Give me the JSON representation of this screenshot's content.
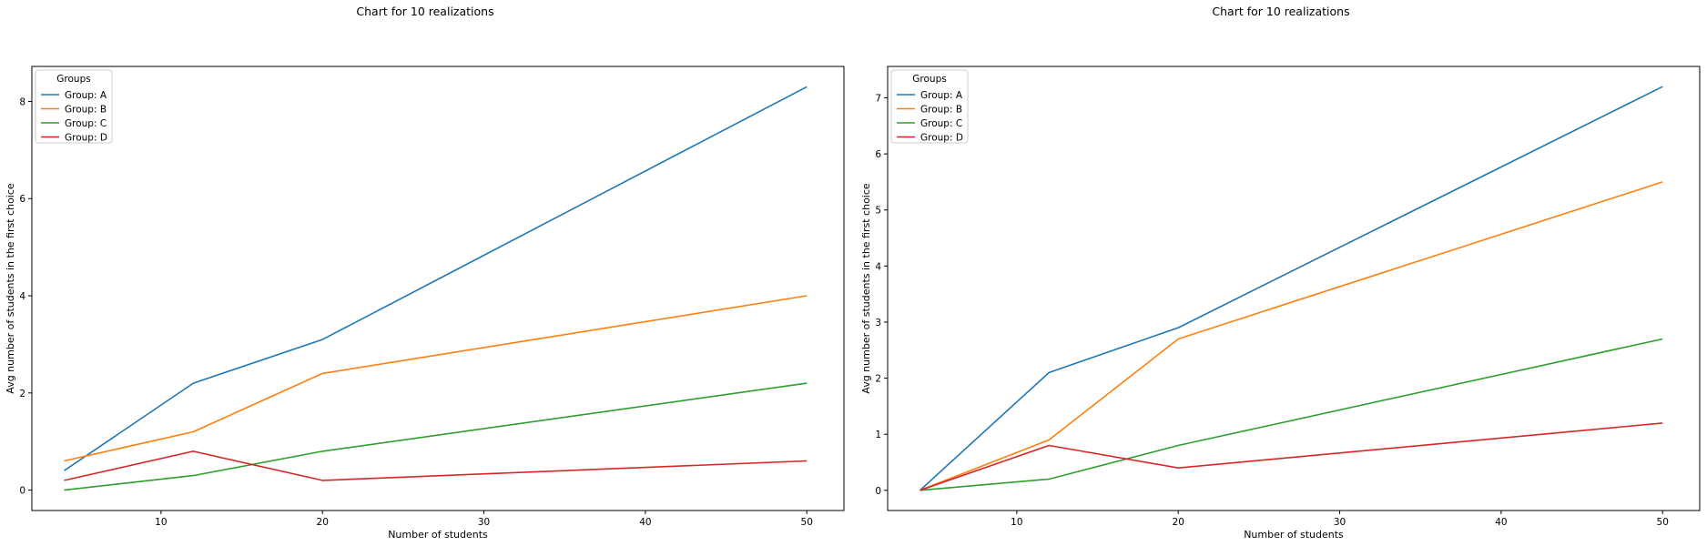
{
  "chart_data": [
    {
      "type": "line",
      "title": "Chart for 10 realizations",
      "xlabel": "Number of students",
      "ylabel": "Avg number of students in the first choice",
      "x": [
        4,
        12,
        20,
        50
      ],
      "xlim": [
        2,
        52.3
      ],
      "ylim": [
        -0.42,
        8.72
      ],
      "xticks": [
        10,
        20,
        30,
        40,
        50
      ],
      "yticks": [
        0,
        2,
        4,
        6,
        8
      ],
      "grid": false,
      "legend": {
        "title": "Groups",
        "placement": "top-left"
      },
      "series": [
        {
          "name": "Group: A",
          "color": "#1f77b4",
          "values": [
            0.4,
            2.2,
            3.1,
            8.3
          ]
        },
        {
          "name": "Group: B",
          "color": "#ff7f0e",
          "values": [
            0.6,
            1.2,
            2.4,
            4.0
          ]
        },
        {
          "name": "Group: C",
          "color": "#2ca02c",
          "values": [
            0.0,
            0.3,
            0.8,
            2.2
          ]
        },
        {
          "name": "Group: D",
          "color": "#d62728",
          "values": [
            0.2,
            0.8,
            0.2,
            0.6
          ]
        }
      ]
    },
    {
      "type": "line",
      "title": "Chart for 10 realizations",
      "xlabel": "Number of students",
      "ylabel": "Avg number of students in the first choice",
      "x": [
        4,
        12,
        20,
        50
      ],
      "xlim": [
        2,
        52.3
      ],
      "ylim": [
        -0.36,
        7.56
      ],
      "xticks": [
        10,
        20,
        30,
        40,
        50
      ],
      "yticks": [
        0,
        1,
        2,
        3,
        4,
        5,
        6,
        7
      ],
      "grid": false,
      "legend": {
        "title": "Groups",
        "placement": "top-left"
      },
      "series": [
        {
          "name": "Group: A",
          "color": "#1f77b4",
          "values": [
            0.0,
            2.1,
            2.9,
            7.2
          ]
        },
        {
          "name": "Group: B",
          "color": "#ff7f0e",
          "values": [
            0.0,
            0.9,
            2.7,
            5.5
          ]
        },
        {
          "name": "Group: C",
          "color": "#2ca02c",
          "values": [
            0.0,
            0.2,
            0.8,
            2.7
          ]
        },
        {
          "name": "Group: D",
          "color": "#d62728",
          "values": [
            0.0,
            0.8,
            0.4,
            1.2
          ]
        }
      ]
    }
  ]
}
